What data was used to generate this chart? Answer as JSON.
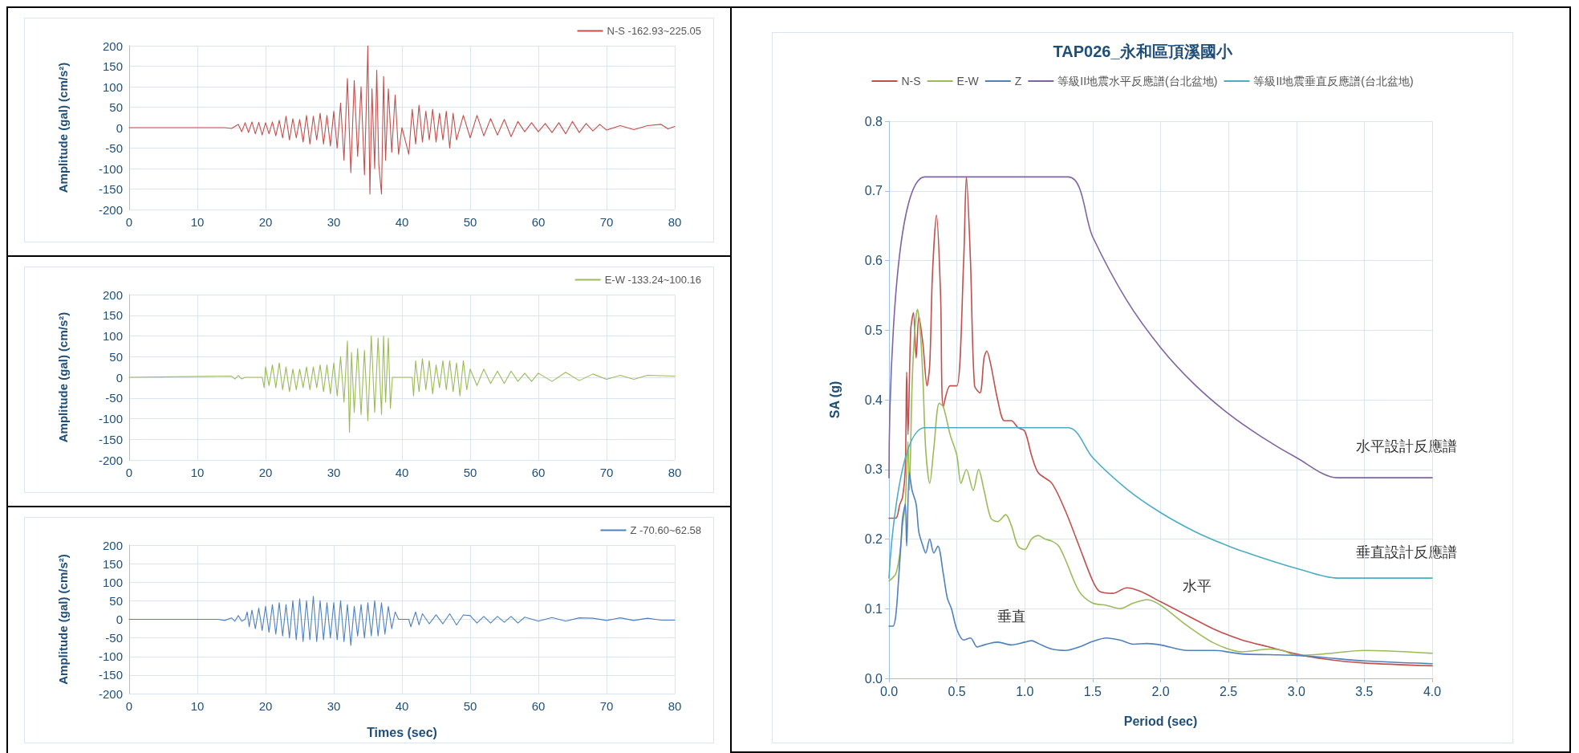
{
  "chart_data": [
    {
      "type": "line",
      "ylabel": "Amplitude (gal) (cm/s²)",
      "xlim": [
        0,
        80
      ],
      "xticks": [
        0,
        10,
        20,
        30,
        40,
        50,
        60,
        70,
        80
      ],
      "ylim": [
        -200,
        200
      ],
      "yticks": [
        -200,
        -150,
        -100,
        -50,
        0,
        50,
        100,
        150,
        200
      ],
      "grid": true,
      "legend": "top right",
      "marker": "none",
      "line_style": "solid",
      "tick_labels": "xy",
      "series": [
        {
          "name": "N-S -162.93~225.05",
          "color": "#c0504d",
          "x": [
            0,
            14,
            15,
            16,
            16.5,
            17,
            17.5,
            18,
            18.5,
            19,
            19.5,
            20,
            20.5,
            21,
            21.5,
            22,
            22.5,
            23,
            23.5,
            24,
            24.5,
            25,
            25.5,
            26,
            26.5,
            27,
            27.5,
            28,
            28.5,
            29,
            29.5,
            30,
            30.5,
            31,
            31.5,
            32,
            32.5,
            33,
            33.5,
            34,
            34.5,
            35,
            35.3,
            35.6,
            36,
            36.3,
            36.6,
            37,
            37.3,
            37.6,
            38,
            38.5,
            39,
            39.5,
            40,
            41,
            41.5,
            42,
            42.5,
            43,
            43.5,
            44,
            44.5,
            45,
            45.5,
            46,
            46.5,
            47,
            47.5,
            48,
            49,
            50,
            51,
            52,
            53,
            54,
            55,
            56,
            57,
            58,
            59,
            60,
            61,
            62,
            63,
            64,
            65,
            66,
            67,
            68,
            69,
            70,
            72,
            74,
            76,
            78,
            79,
            80
          ],
          "values": [
            0,
            0,
            -2,
            8,
            -10,
            12,
            -12,
            14,
            -15,
            13,
            -18,
            12,
            -15,
            14,
            -20,
            18,
            -25,
            28,
            -30,
            22,
            -25,
            20,
            -35,
            30,
            -40,
            28,
            -30,
            35,
            -40,
            30,
            -45,
            40,
            -50,
            60,
            -80,
            120,
            -110,
            115,
            -70,
            100,
            -115,
            200,
            -162,
            95,
            -100,
            140,
            -90,
            -162,
            125,
            -80,
            95,
            -60,
            80,
            -65,
            0,
            -65,
            45,
            -40,
            55,
            -35,
            40,
            -30,
            45,
            -35,
            35,
            -30,
            40,
            -50,
            35,
            -30,
            30,
            -25,
            30,
            -20,
            22,
            -18,
            20,
            -22,
            15,
            -10,
            12,
            -10,
            10,
            -12,
            12,
            -15,
            15,
            -12,
            10,
            -8,
            8,
            -6,
            5,
            -5,
            5,
            8,
            -3,
            3
          ]
        }
      ]
    },
    {
      "type": "line",
      "ylabel": "Amplitude (gal) (cm/s²)",
      "xlim": [
        0,
        80
      ],
      "xticks": [
        0,
        10,
        20,
        30,
        40,
        50,
        60,
        70,
        80
      ],
      "ylim": [
        -200,
        200
      ],
      "yticks": [
        -200,
        -150,
        -100,
        -50,
        0,
        50,
        100,
        150,
        200
      ],
      "grid": true,
      "legend": "top right",
      "marker": "none",
      "line_style": "solid",
      "tick_labels": "xy",
      "series": [
        {
          "name": "E-W -133.24~100.16",
          "color": "#9bbb59",
          "x": [
            0,
            15,
            15.5,
            16,
            16.5,
            17,
            19.5,
            19.8,
            20,
            20.5,
            21,
            21.5,
            22,
            22.5,
            23,
            23.5,
            24,
            24.5,
            25,
            25.5,
            26,
            26.5,
            27,
            27.5,
            28,
            28.5,
            29,
            29.5,
            30,
            30.5,
            31,
            31.5,
            32,
            32.3,
            32.6,
            33,
            33.5,
            34,
            34.5,
            35,
            35.5,
            36,
            36.5,
            37,
            37.3,
            37.6,
            38,
            38.3,
            38.6,
            41.5,
            41.7,
            42,
            42.5,
            43,
            43.5,
            44,
            44.5,
            45,
            45.5,
            46,
            46.5,
            47,
            47.5,
            48,
            48.5,
            49,
            49.5,
            50,
            51,
            52,
            53,
            54,
            55,
            56,
            57,
            58,
            59,
            60,
            62,
            64,
            66,
            68,
            70,
            72,
            74,
            76,
            78,
            80
          ],
          "values": [
            0,
            3,
            -4,
            4,
            -4,
            0,
            0,
            -25,
            25,
            -20,
            30,
            -25,
            35,
            -30,
            25,
            -35,
            20,
            -30,
            20,
            -25,
            25,
            -30,
            25,
            -25,
            30,
            -35,
            30,
            -40,
            35,
            -45,
            50,
            -60,
            88,
            -133,
            60,
            -85,
            70,
            -90,
            65,
            -105,
            100,
            -85,
            95,
            -90,
            100,
            -60,
            95,
            -75,
            0,
            0,
            -45,
            40,
            -35,
            45,
            -30,
            40,
            -40,
            30,
            -25,
            40,
            -30,
            40,
            -35,
            35,
            -45,
            40,
            -30,
            20,
            -20,
            20,
            -15,
            15,
            -15,
            15,
            -10,
            10,
            -10,
            10,
            -10,
            12,
            -8,
            8,
            -5,
            5,
            -5,
            5,
            4,
            3
          ]
        }
      ]
    },
    {
      "type": "line",
      "xlabel": "Times (sec)",
      "ylabel": "Amplitude (gal) (cm/s²)",
      "xlim": [
        0,
        80
      ],
      "xticks": [
        0,
        10,
        20,
        30,
        40,
        50,
        60,
        70,
        80
      ],
      "ylim": [
        -200,
        200
      ],
      "yticks": [
        -200,
        -150,
        -100,
        -50,
        0,
        50,
        100,
        150,
        200
      ],
      "grid": true,
      "legend": "top right",
      "marker": "none",
      "line_style": "solid",
      "tick_labels": "xy",
      "series": [
        {
          "name": "Z -70.60~62.58",
          "color": "#4f81bd",
          "x": [
            0,
            13,
            14,
            15,
            15.5,
            16,
            16.5,
            17,
            17.3,
            17.6,
            18,
            18.5,
            19,
            19.5,
            20,
            20.5,
            21,
            21.5,
            22,
            22.5,
            23,
            23.5,
            24,
            24.5,
            25,
            25.5,
            26,
            26.5,
            27,
            27.5,
            28,
            28.5,
            29,
            29.5,
            30,
            30.5,
            31,
            31.5,
            32,
            32.5,
            33,
            33.5,
            34,
            34.5,
            35,
            35.5,
            36,
            36.5,
            37,
            37.5,
            38,
            38.5,
            39,
            39.5,
            41,
            41.3,
            42,
            42.5,
            43,
            44,
            45,
            46,
            47,
            48,
            49,
            50,
            51,
            52,
            53,
            54,
            55,
            56,
            57,
            58,
            60,
            62,
            64,
            66,
            68,
            70,
            72,
            74,
            76,
            78,
            80
          ],
          "values": [
            0,
            0,
            -3,
            4,
            -5,
            10,
            -5,
            0,
            20,
            -20,
            25,
            -25,
            30,
            -30,
            35,
            -35,
            40,
            -40,
            45,
            -45,
            40,
            -50,
            50,
            -55,
            55,
            -60,
            50,
            -55,
            62,
            -60,
            50,
            -55,
            45,
            -50,
            45,
            -55,
            50,
            -60,
            40,
            -70,
            35,
            -45,
            40,
            -50,
            45,
            -45,
            50,
            -45,
            45,
            -40,
            35,
            -25,
            20,
            0,
            0,
            -20,
            20,
            -15,
            15,
            -12,
            12,
            -12,
            15,
            -15,
            12,
            10,
            -10,
            8,
            -10,
            8,
            -8,
            8,
            -10,
            6,
            -5,
            5,
            -5,
            4,
            3,
            -3,
            4,
            -3,
            3,
            -2,
            -2
          ]
        }
      ]
    },
    {
      "type": "line",
      "title": "TAP026_永和區頂溪國小",
      "xlabel": "Period (sec)",
      "ylabel": "SA (g)",
      "xlim": [
        0,
        4
      ],
      "xticks": [
        {
          "value": 0,
          "label": "0.0"
        },
        0.5,
        {
          "value": 1,
          "label": "1.0"
        },
        1.5,
        {
          "value": 2,
          "label": "2.0"
        },
        2.5,
        {
          "value": 3,
          "label": "3.0"
        },
        3.5,
        {
          "value": 4,
          "label": "4.0"
        }
      ],
      "ylim": [
        0,
        0.8
      ],
      "yticks": [
        {
          "value": 0,
          "label": "0.0"
        },
        0.1,
        0.2,
        0.3,
        0.4,
        0.5,
        0.6,
        0.7,
        0.8
      ],
      "grid": true,
      "legend": "top",
      "marker": "none",
      "line_style": "solid",
      "tick_labels": "xy",
      "annotations": [
        "水平設計反應譜",
        "垂直設計反應譜",
        "水平",
        "垂直"
      ],
      "series": [
        {
          "name": "N-S",
          "color": "#c0504d",
          "x": [
            0,
            0.05,
            0.08,
            0.1,
            0.12,
            0.13,
            0.14,
            0.16,
            0.18,
            0.2,
            0.22,
            0.25,
            0.28,
            0.3,
            0.32,
            0.35,
            0.38,
            0.4,
            0.45,
            0.5,
            0.55,
            0.57,
            0.6,
            0.63,
            0.67,
            0.7,
            0.72,
            0.75,
            0.8,
            0.85,
            0.9,
            0.95,
            1,
            1.05,
            1.1,
            1.2,
            1.3,
            1.4,
            1.5,
            1.55,
            1.65,
            1.75,
            1.85,
            2,
            2.2,
            2.4,
            2.6,
            2.8,
            3,
            3.2,
            3.5,
            4
          ],
          "values": [
            0.23,
            0.23,
            0.25,
            0.26,
            0.3,
            0.44,
            0.35,
            0.5,
            0.525,
            0.46,
            0.52,
            0.48,
            0.42,
            0.45,
            0.58,
            0.665,
            0.55,
            0.39,
            0.42,
            0.42,
            0.6,
            0.72,
            0.6,
            0.42,
            0.41,
            0.46,
            0.47,
            0.45,
            0.4,
            0.37,
            0.37,
            0.36,
            0.355,
            0.32,
            0.295,
            0.28,
            0.24,
            0.19,
            0.14,
            0.125,
            0.122,
            0.13,
            0.125,
            0.11,
            0.09,
            0.07,
            0.055,
            0.045,
            0.035,
            0.028,
            0.022,
            0.018
          ]
        },
        {
          "name": "E-W",
          "color": "#9bbb59",
          "x": [
            0,
            0.05,
            0.08,
            0.1,
            0.12,
            0.14,
            0.15,
            0.17,
            0.19,
            0.21,
            0.23,
            0.25,
            0.27,
            0.3,
            0.33,
            0.37,
            0.4,
            0.45,
            0.5,
            0.53,
            0.57,
            0.62,
            0.66,
            0.7,
            0.75,
            0.8,
            0.86,
            0.9,
            0.95,
            1,
            1.05,
            1.1,
            1.15,
            1.2,
            1.25,
            1.3,
            1.4,
            1.5,
            1.6,
            1.7,
            1.8,
            1.9,
            2,
            2.2,
            2.4,
            2.6,
            2.8,
            2.9,
            3,
            3.2,
            3.5,
            4
          ],
          "values": [
            0.14,
            0.15,
            0.18,
            0.22,
            0.25,
            0.34,
            0.27,
            0.42,
            0.5,
            0.53,
            0.5,
            0.43,
            0.33,
            0.28,
            0.33,
            0.395,
            0.39,
            0.35,
            0.32,
            0.28,
            0.3,
            0.27,
            0.3,
            0.27,
            0.23,
            0.225,
            0.235,
            0.22,
            0.19,
            0.185,
            0.2,
            0.205,
            0.2,
            0.197,
            0.19,
            0.17,
            0.125,
            0.108,
            0.105,
            0.1,
            0.108,
            0.113,
            0.105,
            0.075,
            0.05,
            0.038,
            0.042,
            0.04,
            0.033,
            0.035,
            0.04,
            0.036
          ]
        },
        {
          "name": "Z",
          "color": "#4f81bd",
          "x": [
            0,
            0.03,
            0.05,
            0.07,
            0.09,
            0.1,
            0.12,
            0.13,
            0.15,
            0.17,
            0.2,
            0.22,
            0.25,
            0.27,
            0.3,
            0.33,
            0.36,
            0.4,
            0.43,
            0.46,
            0.5,
            0.55,
            0.6,
            0.65,
            0.7,
            0.8,
            0.9,
            1,
            1.05,
            1.1,
            1.2,
            1.3,
            1.4,
            1.5,
            1.6,
            1.7,
            1.8,
            1.9,
            2,
            2.2,
            2.4,
            2.6,
            2.8,
            3,
            3.2,
            3.5,
            4
          ],
          "values": [
            0.075,
            0.075,
            0.09,
            0.14,
            0.2,
            0.23,
            0.25,
            0.19,
            0.295,
            0.27,
            0.25,
            0.21,
            0.19,
            0.18,
            0.2,
            0.18,
            0.19,
            0.15,
            0.115,
            0.1,
            0.07,
            0.055,
            0.058,
            0.045,
            0.048,
            0.052,
            0.048,
            0.052,
            0.054,
            0.05,
            0.042,
            0.04,
            0.045,
            0.053,
            0.058,
            0.055,
            0.049,
            0.05,
            0.048,
            0.04,
            0.04,
            0.035,
            0.034,
            0.033,
            0.03,
            0.025,
            0.021
          ]
        },
        {
          "name": "等級II地震水平反應譜(台北盆地)",
          "color": "#8064a2",
          "x": [
            0,
            0.264,
            1.32,
            1.5,
            1.75,
            2,
            2.25,
            2.5,
            2.75,
            3,
            3.3,
            4
          ],
          "values": [
            0.288,
            0.72,
            0.72,
            0.634,
            0.543,
            0.475,
            0.422,
            0.38,
            0.346,
            0.317,
            0.288,
            0.288
          ]
        },
        {
          "name": "等級II地震垂直反應譜(台北盆地)",
          "color": "#4bacc6",
          "x": [
            0,
            0.264,
            1.32,
            1.5,
            1.75,
            2,
            2.25,
            2.5,
            2.75,
            3,
            3.3,
            4
          ],
          "values": [
            0.144,
            0.36,
            0.36,
            0.317,
            0.272,
            0.238,
            0.211,
            0.19,
            0.173,
            0.158,
            0.144,
            0.144
          ]
        }
      ]
    }
  ]
}
